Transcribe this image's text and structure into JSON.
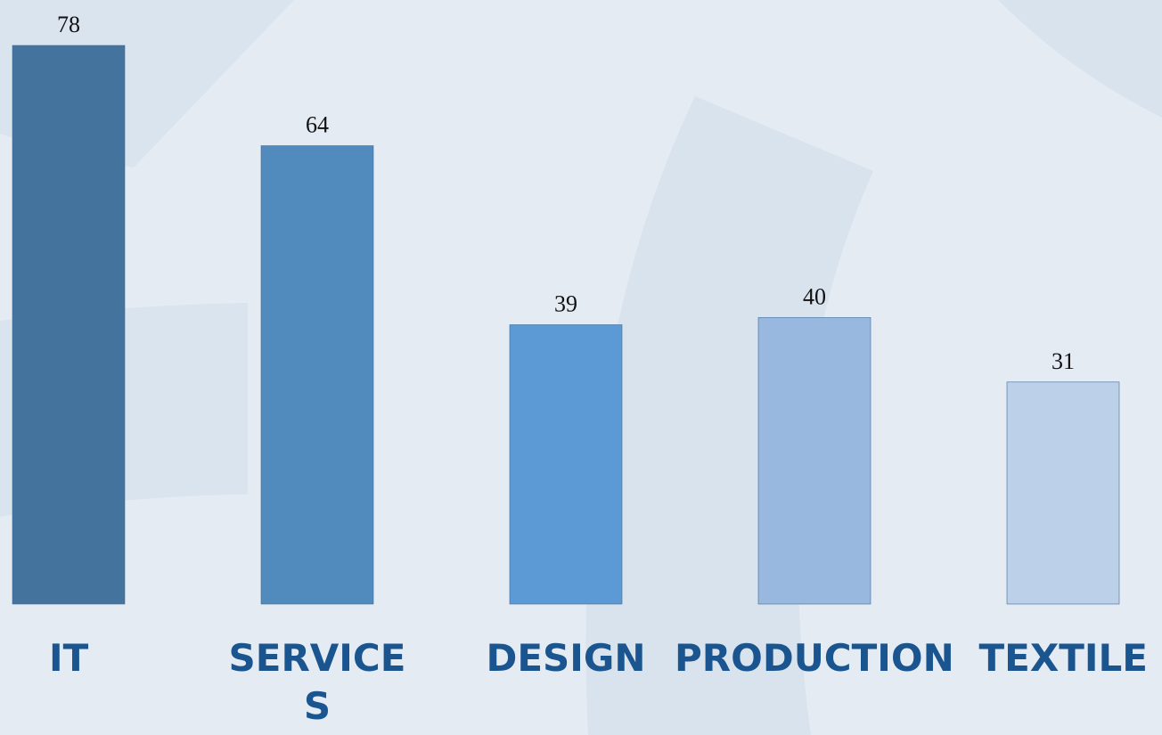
{
  "chart_data": {
    "type": "bar",
    "categories": [
      "IT",
      "SERVICE\nS",
      "DESIGN",
      "PRODUCTION",
      "TEXTILE"
    ],
    "values": [
      78,
      64,
      39,
      40,
      31
    ],
    "title": "",
    "xlabel": "",
    "ylabel": "",
    "ylim": [
      0,
      78
    ],
    "grid": false,
    "legend": "none",
    "colors": [
      "#44739e",
      "#518abc",
      "#5c9ad5",
      "#99b8df",
      "#bcd0e9"
    ],
    "label_color": "#1a5590"
  }
}
